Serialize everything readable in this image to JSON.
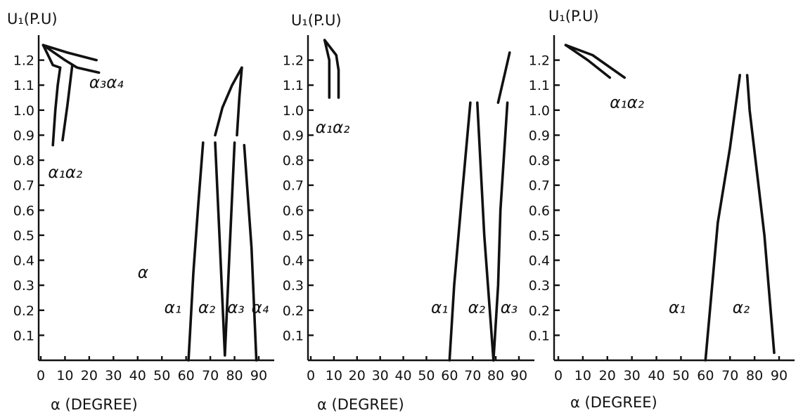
{
  "chart_data": [
    {
      "type": "line",
      "ylabel": "U₁(P.U)",
      "xlabel": "α (DEGREE)",
      "xlim": [
        0,
        90
      ],
      "ylim": [
        0,
        1.3
      ],
      "xticks": [
        "0",
        "10",
        "20",
        "30",
        "40",
        "50",
        "60",
        "70",
        "80",
        "90"
      ],
      "yticks": [
        "0.1",
        "0.2",
        "0.3",
        "0.4",
        "0.5",
        "0.6",
        "0.7",
        "0.8",
        "0.9",
        "1.0",
        "1.1",
        "1.2"
      ],
      "curves": [
        {
          "points": [
            [
              1,
              1.26
            ],
            [
              11,
              1.23
            ],
            [
              23,
              1.2
            ]
          ]
        },
        {
          "points": [
            [
              1,
              1.26
            ],
            [
              10,
              1.2
            ],
            [
              15,
              1.17
            ],
            [
              24,
              1.15
            ]
          ]
        },
        {
          "points": [
            [
              1,
              1.26
            ],
            [
              5,
              1.18
            ],
            [
              8,
              1.17
            ]
          ]
        },
        {
          "points": [
            [
              8,
              1.17
            ],
            [
              7,
              1.1
            ],
            [
              6,
              1.0
            ],
            [
              5,
              0.86
            ]
          ]
        },
        {
          "points": [
            [
              13,
              1.18
            ],
            [
              11,
              1.02
            ],
            [
              9,
              0.88
            ]
          ]
        },
        {
          "points": [
            [
              61,
              0.0
            ],
            [
              63,
              0.35
            ],
            [
              65,
              0.62
            ],
            [
              67,
              0.87
            ]
          ]
        },
        {
          "points": [
            [
              72,
              0.87
            ],
            [
              74,
              0.45
            ],
            [
              76,
              0.02
            ]
          ]
        },
        {
          "points": [
            [
              76,
              0.02
            ],
            [
              78,
              0.45
            ],
            [
              80,
              0.87
            ]
          ]
        },
        {
          "points": [
            [
              72,
              0.9
            ],
            [
              75,
              1.01
            ],
            [
              79,
              1.1
            ],
            [
              83,
              1.17
            ]
          ]
        },
        {
          "points": [
            [
              83,
              1.17
            ],
            [
              82,
              1.05
            ],
            [
              81,
              0.9
            ]
          ]
        },
        {
          "points": [
            [
              84,
              0.86
            ],
            [
              87,
              0.45
            ],
            [
              89,
              0.0
            ]
          ]
        }
      ],
      "labels": [
        {
          "text": "α₃α₄",
          "x": 20,
          "y": 1.09
        },
        {
          "text": "α₁α₂",
          "x": 3,
          "y": 0.73
        },
        {
          "text": "α",
          "x": 40,
          "y": 0.33
        },
        {
          "text": "α₁",
          "x": 51,
          "y": 0.19
        },
        {
          "text": "α₂",
          "x": 65,
          "y": 0.19
        },
        {
          "text": "α₃",
          "x": 77,
          "y": 0.19
        },
        {
          "text": "α₄",
          "x": 87,
          "y": 0.19
        }
      ]
    },
    {
      "type": "line",
      "ylabel": "U₁(P.U)",
      "xlabel": "α (DEGREE)",
      "xlim": [
        0,
        90
      ],
      "ylim": [
        0,
        1.3
      ],
      "xticks": [
        "0",
        "10",
        "20",
        "30",
        "40",
        "50",
        "60",
        "70",
        "80",
        "90"
      ],
      "yticks": [
        "0.1",
        "0.2",
        "0.3",
        "0.4",
        "0.5",
        "0.6",
        "0.7",
        "0.8",
        "0.9",
        "1.0",
        "1.1",
        "1.2"
      ],
      "curves": [
        {
          "points": [
            [
              6,
              1.28
            ],
            [
              8,
              1.2
            ],
            [
              8,
              1.05
            ]
          ]
        },
        {
          "points": [
            [
              6,
              1.28
            ],
            [
              11,
              1.22
            ],
            [
              12,
              1.16
            ],
            [
              12,
              1.05
            ]
          ]
        },
        {
          "points": [
            [
              60,
              0.0
            ],
            [
              62,
              0.3
            ],
            [
              65,
              0.62
            ],
            [
              69,
              1.03
            ]
          ]
        },
        {
          "points": [
            [
              72,
              1.03
            ],
            [
              75,
              0.5
            ],
            [
              79,
              0.0
            ]
          ]
        },
        {
          "points": [
            [
              79,
              0.0
            ],
            [
              81,
              0.3
            ],
            [
              82,
              0.6
            ],
            [
              85,
              1.03
            ]
          ]
        },
        {
          "points": [
            [
              81,
              1.03
            ],
            [
              84,
              1.15
            ],
            [
              86,
              1.23
            ]
          ]
        }
      ],
      "labels": [
        {
          "text": "α₁α₂",
          "x": 2,
          "y": 0.91
        },
        {
          "text": "α₁",
          "x": 52,
          "y": 0.19
        },
        {
          "text": "α₂",
          "x": 68,
          "y": 0.19
        },
        {
          "text": "α₃",
          "x": 82,
          "y": 0.19
        }
      ]
    },
    {
      "type": "line",
      "ylabel": "U₁(P.U)",
      "xlabel": "α (DEGREE)",
      "xlim": [
        0,
        90
      ],
      "ylim": [
        0,
        1.3
      ],
      "xticks": [
        "0",
        "10",
        "20",
        "30",
        "40",
        "50",
        "60",
        "70",
        "80",
        "90"
      ],
      "yticks": [
        "0.1",
        "0.2",
        "0.3",
        "0.4",
        "0.5",
        "0.6",
        "0.7",
        "0.8",
        "0.9",
        "1.0",
        "1.1",
        "1.2"
      ],
      "curves": [
        {
          "points": [
            [
              3,
              1.26
            ],
            [
              14,
              1.22
            ],
            [
              27,
              1.13
            ]
          ]
        },
        {
          "points": [
            [
              3,
              1.26
            ],
            [
              12,
              1.2
            ],
            [
              21,
              1.13
            ]
          ]
        },
        {
          "points": [
            [
              60,
              0.0
            ],
            [
              65,
              0.55
            ],
            [
              70,
              0.85
            ],
            [
              74,
              1.14
            ]
          ]
        },
        {
          "points": [
            [
              77,
              1.14
            ],
            [
              78,
              1.0
            ],
            [
              84,
              0.5
            ],
            [
              88,
              0.03
            ]
          ]
        }
      ],
      "labels": [
        {
          "text": "α₁α₂",
          "x": 21,
          "y": 1.01
        },
        {
          "text": "α₁",
          "x": 45,
          "y": 0.19
        },
        {
          "text": "α₂",
          "x": 71,
          "y": 0.19
        }
      ]
    }
  ]
}
